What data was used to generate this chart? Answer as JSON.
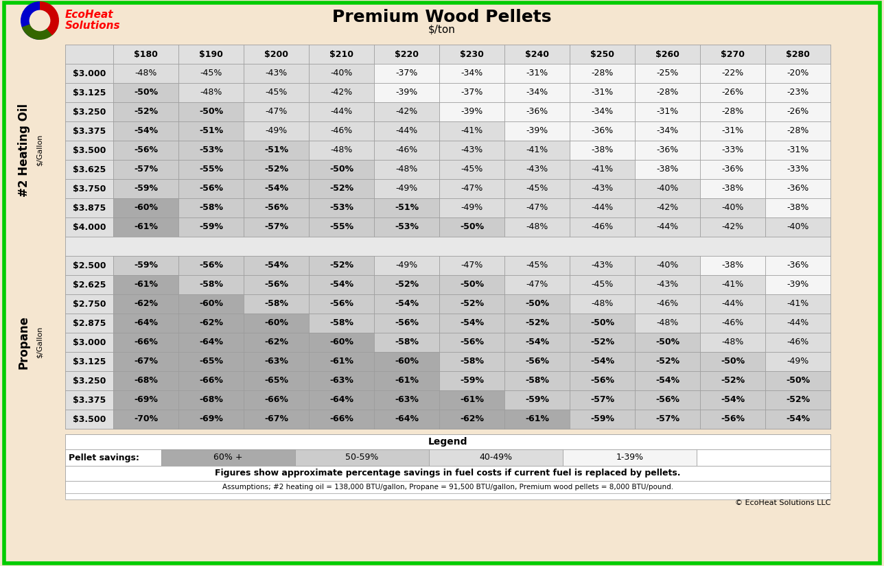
{
  "title": "Premium Wood Pellets",
  "subtitle": "$/ton",
  "col_headers": [
    "$180",
    "$190",
    "$200",
    "$210",
    "$220",
    "$230",
    "$240",
    "$250",
    "$260",
    "$270",
    "$280"
  ],
  "oil_row_labels": [
    "$3.000",
    "$3.125",
    "$3.250",
    "$3.375",
    "$3.500",
    "$3.625",
    "$3.750",
    "$3.875",
    "$4.000"
  ],
  "propane_row_labels": [
    "$2.500",
    "$2.625",
    "$2.750",
    "$2.875",
    "$3.000",
    "$3.125",
    "$3.250",
    "$3.375",
    "$3.500"
  ],
  "oil_data": [
    [
      -48,
      -45,
      -43,
      -40,
      -37,
      -34,
      -31,
      -28,
      -25,
      -22,
      -20
    ],
    [
      -50,
      -48,
      -45,
      -42,
      -39,
      -37,
      -34,
      -31,
      -28,
      -26,
      -23
    ],
    [
      -52,
      -50,
      -47,
      -44,
      -42,
      -39,
      -36,
      -34,
      -31,
      -28,
      -26
    ],
    [
      -54,
      -51,
      -49,
      -46,
      -44,
      -41,
      -39,
      -36,
      -34,
      -31,
      -28
    ],
    [
      -56,
      -53,
      -51,
      -48,
      -46,
      -43,
      -41,
      -38,
      -36,
      -33,
      -31
    ],
    [
      -57,
      -55,
      -52,
      -50,
      -48,
      -45,
      -43,
      -41,
      -38,
      -36,
      -33
    ],
    [
      -59,
      -56,
      -54,
      -52,
      -49,
      -47,
      -45,
      -43,
      -40,
      -38,
      -36
    ],
    [
      -60,
      -58,
      -56,
      -53,
      -51,
      -49,
      -47,
      -44,
      -42,
      -40,
      -38
    ],
    [
      -61,
      -59,
      -57,
      -55,
      -53,
      -50,
      -48,
      -46,
      -44,
      -42,
      -40
    ]
  ],
  "propane_data": [
    [
      -59,
      -56,
      -54,
      -52,
      -49,
      -47,
      -45,
      -43,
      -40,
      -38,
      -36
    ],
    [
      -61,
      -58,
      -56,
      -54,
      -52,
      -50,
      -47,
      -45,
      -43,
      -41,
      -39
    ],
    [
      -62,
      -60,
      -58,
      -56,
      -54,
      -52,
      -50,
      -48,
      -46,
      -44,
      -41
    ],
    [
      -64,
      -62,
      -60,
      -58,
      -56,
      -54,
      -52,
      -50,
      -48,
      -46,
      -44
    ],
    [
      -66,
      -64,
      -62,
      -60,
      -58,
      -56,
      -54,
      -52,
      -50,
      -48,
      -46
    ],
    [
      -67,
      -65,
      -63,
      -61,
      -60,
      -58,
      -56,
      -54,
      -52,
      -50,
      -49
    ],
    [
      -68,
      -66,
      -65,
      -63,
      -61,
      -59,
      -58,
      -56,
      -54,
      -52,
      -50
    ],
    [
      -69,
      -68,
      -66,
      -64,
      -63,
      -61,
      -59,
      -57,
      -56,
      -54,
      -52
    ],
    [
      -70,
      -69,
      -67,
      -66,
      -64,
      -62,
      -61,
      -59,
      -57,
      -56,
      -54
    ]
  ],
  "color_60plus": "#aaaaaa",
  "color_50_59": "#cccccc",
  "color_40_49": "#dddddd",
  "color_1_39": "#f5f5f5",
  "color_header_bg": "#e0e0e0",
  "color_separator_bg": "#e8e8e8",
  "outer_bg": "#f5e6d0",
  "border_color": "#00cc00",
  "table_bg": "#ffffff",
  "legend_text": "Legend",
  "legend_savings_label": "Pellet savings:",
  "legend_60plus": "60% +",
  "legend_50_59": "50-59%",
  "legend_40_49": "40-49%",
  "legend_1_39": "1-39%",
  "note1": "Figures show approximate percentage savings in fuel costs if current fuel is replaced by pellets.",
  "note2": "Assumptions; #2 heating oil = 138,000 BTU/gallon, Propane = 91,500 BTU/gallon, Premium wood pellets = 8,000 BTU/pound.",
  "copyright": "© EcoHeat Solutions LLC",
  "section1_label": "#2 Heating Oil",
  "section2_label": "Propane",
  "units_label": "$/Gallon"
}
